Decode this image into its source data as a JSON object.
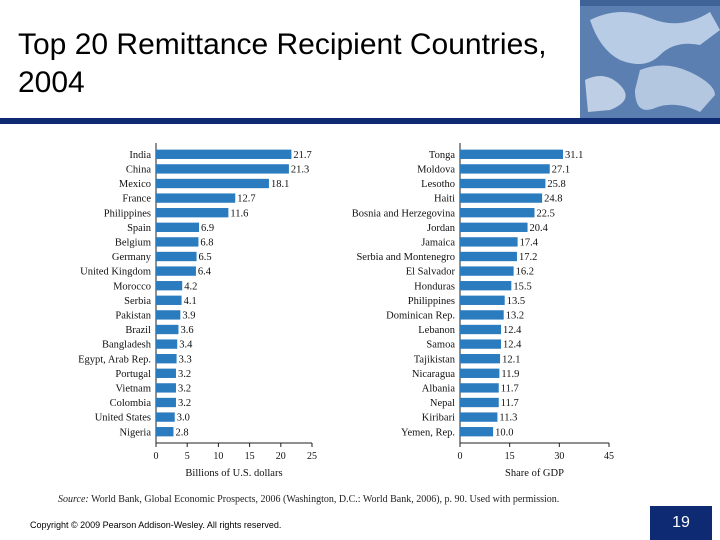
{
  "slide": {
    "title": "Top 20 Remittance Recipient Countries, 2004",
    "source_prefix": "Source:",
    "source_text": "World Bank, Global Economic Prospects, 2006 (Washington, D.C.: World Bank, 2006), p. 90. Used with permission.",
    "copyright": "Copyright © 2009 Pearson Addison-Wesley. All rights reserved.",
    "page_number": "19"
  },
  "colors": {
    "bar": "#2b7bbf",
    "title_rule": "#0e2a73",
    "page_box": "#0e2a73"
  },
  "chart_data": [
    {
      "type": "bar",
      "orientation": "horizontal",
      "xlabel": "Billions of U.S. dollars",
      "xlim": [
        0,
        25
      ],
      "xticks": [
        0,
        5,
        10,
        15,
        20,
        25
      ],
      "categories": [
        "India",
        "China",
        "Mexico",
        "France",
        "Philippines",
        "Spain",
        "Belgium",
        "Germany",
        "United Kingdom",
        "Morocco",
        "Serbia",
        "Pakistan",
        "Brazil",
        "Bangladesh",
        "Egypt, Arab Rep.",
        "Portugal",
        "Vietnam",
        "Colombia",
        "United States",
        "Nigeria"
      ],
      "values": [
        21.7,
        21.3,
        18.1,
        12.7,
        11.6,
        6.9,
        6.8,
        6.5,
        6.4,
        4.2,
        4.1,
        3.9,
        3.6,
        3.4,
        3.3,
        3.2,
        3.2,
        3.2,
        3.0,
        2.8
      ],
      "labels": [
        "21.7",
        "21.3",
        "18.1",
        "12.7",
        "11.6",
        "6.9",
        "6.8",
        "6.5",
        "6.4",
        "4.2",
        "4.1",
        "3.9",
        "3.6",
        "3.4",
        "3.3",
        "3.2",
        "3.2",
        "3.2",
        "3.0",
        "2.8"
      ]
    },
    {
      "type": "bar",
      "orientation": "horizontal",
      "xlabel": "Share of GDP",
      "xlim": [
        0,
        45
      ],
      "xticks": [
        0,
        15,
        30,
        45
      ],
      "categories": [
        "Tonga",
        "Moldova",
        "Lesotho",
        "Haiti",
        "Bosnia and Herzegovina",
        "Jordan",
        "Jamaica",
        "Serbia and Montenegro",
        "El Salvador",
        "Honduras",
        "Philippines",
        "Dominican Rep.",
        "Lebanon",
        "Samoa",
        "Tajikistan",
        "Nicaragua",
        "Albania",
        "Nepal",
        "Kiribari",
        "Yemen, Rep."
      ],
      "values": [
        31.1,
        27.1,
        25.8,
        24.8,
        22.5,
        20.4,
        17.4,
        17.2,
        16.2,
        15.5,
        13.5,
        13.2,
        12.4,
        12.4,
        12.1,
        11.9,
        11.7,
        11.7,
        11.3,
        10.0
      ],
      "labels": [
        "31.1",
        "27.1",
        "25.8",
        "24.8",
        "22.5",
        "20.4",
        "17.4",
        "17.2",
        "16.2",
        "15.5",
        "13.5",
        "13.2",
        "12.4",
        "12.4",
        "12.1",
        "11.9",
        "11.7",
        "11.7",
        "11.3",
        "10.0"
      ]
    }
  ]
}
